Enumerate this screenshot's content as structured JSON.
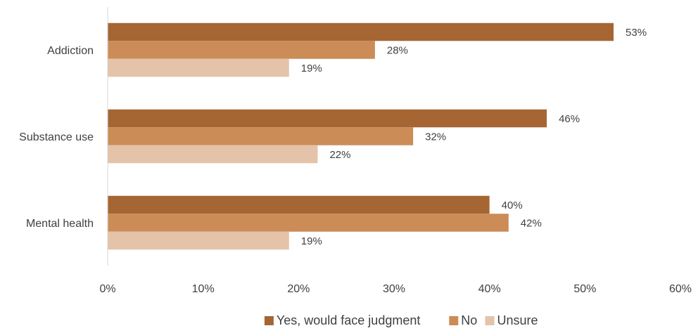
{
  "chart_data": {
    "type": "bar",
    "orientation": "horizontal",
    "categories": [
      "Addiction",
      "Substance use",
      "Mental health"
    ],
    "series": [
      {
        "name": "Yes, would face judgment",
        "values": [
          53,
          46,
          40
        ],
        "labels": [
          "53%",
          "46%",
          "40%"
        ],
        "color": "#A56634"
      },
      {
        "name": "No",
        "values": [
          28,
          32,
          42
        ],
        "labels": [
          "28%",
          "32%",
          "42%"
        ],
        "color": "#CB8C57"
      },
      {
        "name": "Unsure",
        "values": [
          19,
          22,
          19
        ],
        "labels": [
          "19%",
          "22%",
          "19%"
        ],
        "color": "#E5C3A9"
      }
    ],
    "xlim": [
      0,
      60
    ],
    "x_ticks": [
      0,
      10,
      20,
      30,
      40,
      50,
      60
    ],
    "x_tick_labels": [
      "0%",
      "10%",
      "20%",
      "30%",
      "40%",
      "50%",
      "60%"
    ],
    "grid": false,
    "legend_position": "bottom",
    "title": "",
    "xlabel": "",
    "ylabel": ""
  }
}
